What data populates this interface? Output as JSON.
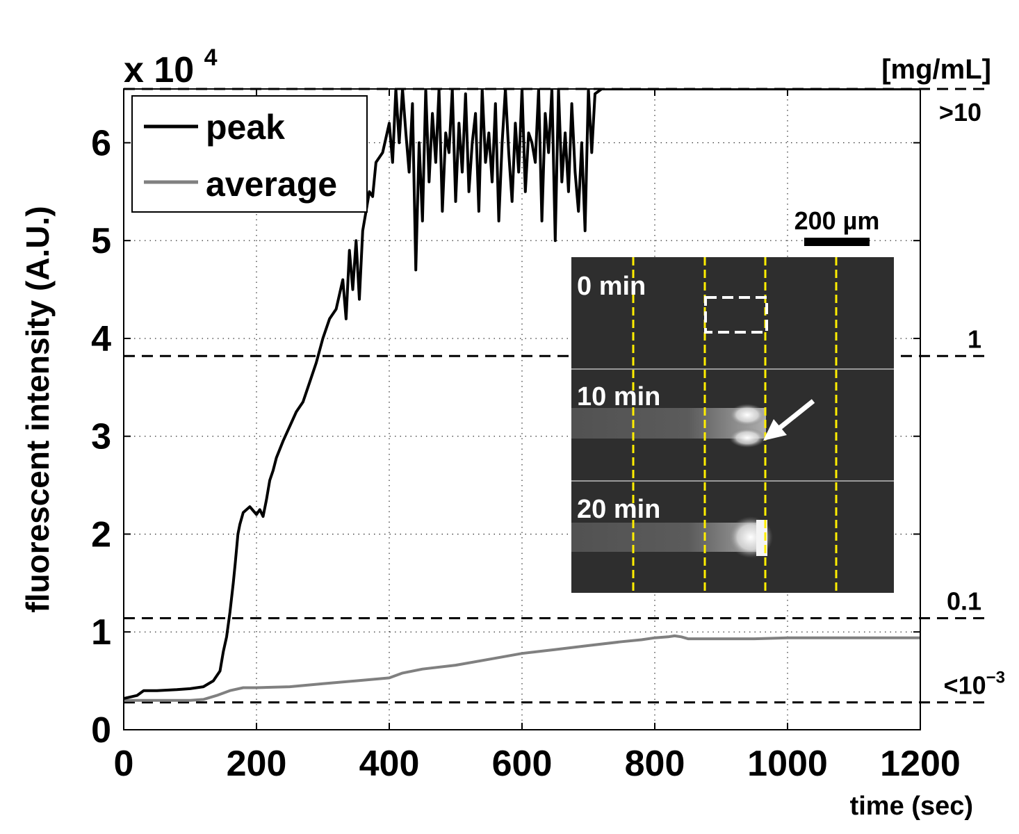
{
  "chart_data": {
    "type": "line",
    "title": "",
    "xlabel": "time (sec)",
    "ylabel": "fluorescent intensity (A.U.)",
    "y_multiplier_label": "x 10",
    "y_multiplier_exp": "4",
    "xlim": [
      0,
      1200
    ],
    "ylim": [
      0,
      6.55
    ],
    "x_ticks": [
      "0",
      "200",
      "400",
      "600",
      "800",
      "1000",
      "1200"
    ],
    "y_ticks": [
      "0",
      "1",
      "2",
      "3",
      "4",
      "5",
      "6"
    ],
    "grid": true,
    "legend": {
      "placement": "top-left",
      "entries": [
        {
          "name": "peak",
          "color": "#000000"
        },
        {
          "name": "average",
          "color": "#808080"
        }
      ]
    },
    "series": [
      {
        "name": "peak",
        "color": "#000000",
        "x": [
          0,
          20,
          30,
          50,
          80,
          100,
          120,
          135,
          145,
          150,
          155,
          160,
          165,
          168,
          172,
          175,
          180,
          185,
          190,
          200,
          205,
          210,
          215,
          220,
          225,
          230,
          240,
          250,
          260,
          270,
          280,
          290,
          300,
          310,
          320,
          330,
          335,
          340,
          345,
          350,
          355,
          360,
          365,
          370,
          375,
          380,
          390,
          400,
          405,
          410,
          415,
          420,
          425,
          430,
          435,
          440,
          445,
          450,
          455,
          460,
          465,
          470,
          475,
          480,
          485,
          490,
          495,
          500,
          505,
          510,
          515,
          520,
          525,
          530,
          535,
          540,
          545,
          550,
          555,
          560,
          565,
          570,
          575,
          580,
          585,
          590,
          595,
          600,
          605,
          610,
          615,
          620,
          625,
          630,
          635,
          640,
          645,
          650,
          655,
          660,
          665,
          670,
          675,
          680,
          685,
          690,
          695,
          700,
          705,
          710,
          720,
          800,
          900,
          1000,
          1100,
          1200
        ],
        "y": [
          0.32,
          0.35,
          0.4,
          0.4,
          0.41,
          0.42,
          0.44,
          0.5,
          0.6,
          0.8,
          0.95,
          1.2,
          1.5,
          1.7,
          2.0,
          2.1,
          2.22,
          2.25,
          2.28,
          2.2,
          2.25,
          2.18,
          2.35,
          2.55,
          2.65,
          2.78,
          2.95,
          3.1,
          3.25,
          3.35,
          3.55,
          3.75,
          4.0,
          4.2,
          4.3,
          4.6,
          4.2,
          4.9,
          4.5,
          5.0,
          4.4,
          5.1,
          5.3,
          5.5,
          5.45,
          5.8,
          5.9,
          6.2,
          5.8,
          6.55,
          6.0,
          6.55,
          6.1,
          5.7,
          6.4,
          4.7,
          6.0,
          5.2,
          6.55,
          5.6,
          6.3,
          5.8,
          6.55,
          5.3,
          6.1,
          5.9,
          6.55,
          5.4,
          6.2,
          5.7,
          6.5,
          5.5,
          6.0,
          6.3,
          5.3,
          6.55,
          5.8,
          6.1,
          5.6,
          6.4,
          5.2,
          6.0,
          6.55,
          5.9,
          5.4,
          6.2,
          5.7,
          6.55,
          5.5,
          6.1,
          6.0,
          5.8,
          6.55,
          5.2,
          6.3,
          5.9,
          6.55,
          5.0,
          6.55,
          5.6,
          6.1,
          5.5,
          6.4,
          5.7,
          5.3,
          6.0,
          5.1,
          6.55,
          5.9,
          6.5,
          6.55,
          6.55,
          6.55,
          6.55,
          6.55,
          6.55
        ]
      },
      {
        "name": "average",
        "color": "#808080",
        "x": [
          0,
          50,
          100,
          120,
          140,
          160,
          180,
          200,
          250,
          300,
          350,
          400,
          420,
          450,
          500,
          550,
          600,
          650,
          700,
          750,
          780,
          800,
          820,
          830,
          840,
          850,
          900,
          950,
          1000,
          1100,
          1200
        ],
        "y": [
          0.3,
          0.3,
          0.3,
          0.31,
          0.35,
          0.4,
          0.43,
          0.43,
          0.44,
          0.47,
          0.5,
          0.53,
          0.58,
          0.62,
          0.66,
          0.72,
          0.78,
          0.82,
          0.86,
          0.9,
          0.92,
          0.94,
          0.95,
          0.96,
          0.95,
          0.93,
          0.93,
          0.93,
          0.94,
          0.94,
          0.94
        ]
      }
    ],
    "concentration_axis": {
      "unit": "[mg/mL]",
      "reference_lines": [
        {
          "value": 6.55,
          "label": ">10"
        },
        {
          "value": 3.82,
          "label": "1"
        },
        {
          "value": 1.14,
          "label": "0.1"
        },
        {
          "value": 0.28,
          "label": "<10",
          "superscript": "−3"
        }
      ]
    },
    "inset": {
      "scale_bar_label": "200 µm",
      "panels": [
        {
          "label": "0 min"
        },
        {
          "label": "10 min"
        },
        {
          "label": "20 min"
        }
      ]
    }
  }
}
